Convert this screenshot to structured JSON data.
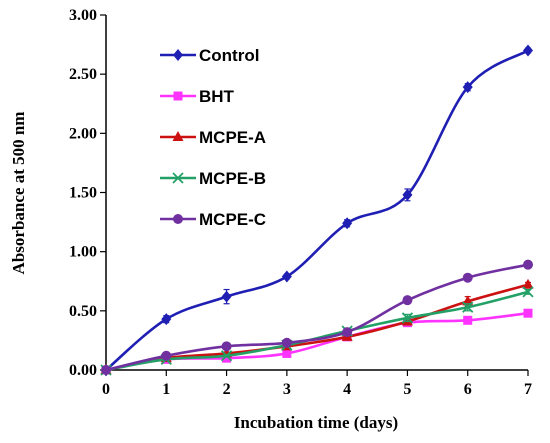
{
  "chart_data": {
    "type": "line",
    "xlabel": "Incubation time (days)",
    "ylabel": "Absorbance at 500 nm",
    "x": [
      0,
      1,
      2,
      3,
      4,
      5,
      6,
      7
    ],
    "xlim": [
      0,
      7
    ],
    "ylim": [
      0,
      3
    ],
    "x_ticks": [
      "0",
      "1",
      "2",
      "3",
      "4",
      "5",
      "6",
      "7"
    ],
    "y_ticks": [
      "0.00",
      "0.50",
      "1.00",
      "1.50",
      "2.00",
      "2.50",
      "3.00"
    ],
    "grid": false,
    "legend_position": "top-left",
    "series": [
      {
        "name": "Control",
        "color": "#1f1fb4",
        "marker": "diamond",
        "values": [
          0.0,
          0.43,
          0.62,
          0.79,
          1.24,
          1.48,
          2.39,
          2.7
        ],
        "errors": [
          0,
          0.03,
          0.06,
          0.02,
          0.03,
          0.05,
          0.03,
          0.02
        ]
      },
      {
        "name": "BHT",
        "color": "#ff33ff",
        "marker": "square",
        "values": [
          0.0,
          0.09,
          0.1,
          0.14,
          0.28,
          0.4,
          0.42,
          0.48
        ],
        "errors": [
          0,
          0.01,
          0.01,
          0.01,
          0.02,
          0.02,
          0.02,
          0.02
        ]
      },
      {
        "name": "MCPE-A",
        "color": "#cc1111",
        "marker": "triangle",
        "values": [
          0.0,
          0.1,
          0.14,
          0.2,
          0.28,
          0.41,
          0.58,
          0.72
        ],
        "errors": [
          0,
          0.01,
          0.01,
          0.01,
          0.02,
          0.02,
          0.04,
          0.02
        ]
      },
      {
        "name": "MCPE-B",
        "color": "#22a066",
        "marker": "x",
        "values": [
          0.0,
          0.09,
          0.12,
          0.21,
          0.33,
          0.44,
          0.53,
          0.66
        ],
        "errors": [
          0,
          0.01,
          0.01,
          0.01,
          0.02,
          0.03,
          0.03,
          0.02
        ]
      },
      {
        "name": "MCPE-C",
        "color": "#7030a0",
        "marker": "circle",
        "values": [
          0.0,
          0.12,
          0.2,
          0.23,
          0.32,
          0.59,
          0.78,
          0.89
        ],
        "errors": [
          0,
          0.01,
          0.01,
          0.01,
          0.02,
          0.02,
          0.02,
          0.02
        ]
      }
    ]
  }
}
